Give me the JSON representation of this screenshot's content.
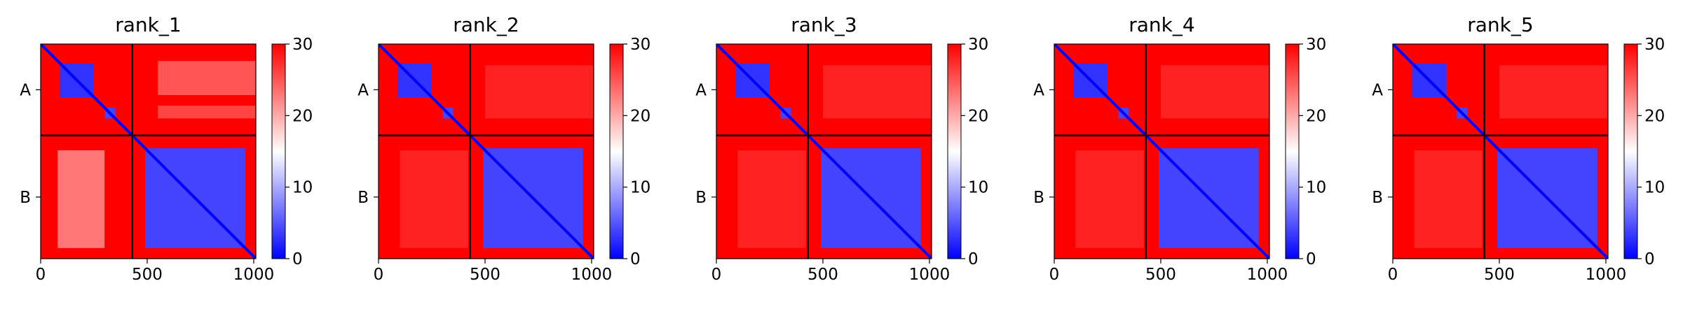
{
  "chart_data": [
    {
      "type": "heatmap",
      "title": "rank_1",
      "xlim": [
        0,
        1010
      ],
      "ylim": [
        0,
        1010
      ],
      "x_ticks": [
        "0",
        "500",
        "1000"
      ],
      "y_labels": [
        "A",
        "B"
      ],
      "chain_boundary": 430,
      "colorbar": {
        "colormap": "bwr",
        "min": 0,
        "max": 30,
        "ticks": [
          "0",
          "10",
          "20",
          "30"
        ],
        "low_color": "#0000ff",
        "mid_color": "#ffffff",
        "high_color": "#ff0000"
      },
      "blocks": [
        {
          "x": [
            0,
            1010
          ],
          "y": [
            0,
            1010
          ],
          "value": 30
        },
        {
          "x": [
            550,
            1010
          ],
          "y": [
            80,
            240
          ],
          "value": 25
        },
        {
          "x": [
            550,
            1010
          ],
          "y": [
            290,
            350
          ],
          "value": 26
        },
        {
          "x": [
            80,
            300
          ],
          "y": [
            500,
            960
          ],
          "value": 23
        },
        {
          "x": [
            90,
            250
          ],
          "y": [
            90,
            250
          ],
          "value": 3
        },
        {
          "x": [
            300,
            350
          ],
          "y": [
            300,
            350
          ],
          "value": 4
        },
        {
          "x": [
            490,
            960
          ],
          "y": [
            490,
            960
          ],
          "value": 4
        }
      ]
    },
    {
      "type": "heatmap",
      "title": "rank_2",
      "xlim": [
        0,
        1010
      ],
      "ylim": [
        0,
        1010
      ],
      "x_ticks": [
        "0",
        "500",
        "1000"
      ],
      "y_labels": [
        "A",
        "B"
      ],
      "chain_boundary": 430,
      "colorbar": {
        "colormap": "bwr",
        "min": 0,
        "max": 30,
        "ticks": [
          "0",
          "10",
          "20",
          "30"
        ],
        "low_color": "#0000ff",
        "mid_color": "#ffffff",
        "high_color": "#ff0000"
      },
      "blocks": [
        {
          "x": [
            0,
            1010
          ],
          "y": [
            0,
            1010
          ],
          "value": 30
        },
        {
          "x": [
            500,
            1010
          ],
          "y": [
            100,
            350
          ],
          "value": 28
        },
        {
          "x": [
            100,
            420
          ],
          "y": [
            500,
            960
          ],
          "value": 28
        },
        {
          "x": [
            90,
            250
          ],
          "y": [
            90,
            250
          ],
          "value": 3
        },
        {
          "x": [
            300,
            350
          ],
          "y": [
            300,
            350
          ],
          "value": 4
        },
        {
          "x": [
            490,
            960
          ],
          "y": [
            490,
            960
          ],
          "value": 4
        }
      ]
    },
    {
      "type": "heatmap",
      "title": "rank_3",
      "xlim": [
        0,
        1010
      ],
      "ylim": [
        0,
        1010
      ],
      "x_ticks": [
        "0",
        "500",
        "1000"
      ],
      "y_labels": [
        "A",
        "B"
      ],
      "chain_boundary": 430,
      "colorbar": {
        "colormap": "bwr",
        "min": 0,
        "max": 30,
        "ticks": [
          "0",
          "10",
          "20",
          "30"
        ],
        "low_color": "#0000ff",
        "mid_color": "#ffffff",
        "high_color": "#ff0000"
      },
      "blocks": [
        {
          "x": [
            0,
            1010
          ],
          "y": [
            0,
            1010
          ],
          "value": 30
        },
        {
          "x": [
            500,
            1010
          ],
          "y": [
            100,
            350
          ],
          "value": 28
        },
        {
          "x": [
            100,
            420
          ],
          "y": [
            500,
            960
          ],
          "value": 28
        },
        {
          "x": [
            90,
            250
          ],
          "y": [
            90,
            250
          ],
          "value": 3
        },
        {
          "x": [
            300,
            350
          ],
          "y": [
            300,
            350
          ],
          "value": 4
        },
        {
          "x": [
            490,
            960
          ],
          "y": [
            490,
            960
          ],
          "value": 4
        }
      ]
    },
    {
      "type": "heatmap",
      "title": "rank_4",
      "xlim": [
        0,
        1010
      ],
      "ylim": [
        0,
        1010
      ],
      "x_ticks": [
        "0",
        "500",
        "1000"
      ],
      "y_labels": [
        "A",
        "B"
      ],
      "chain_boundary": 430,
      "colorbar": {
        "colormap": "bwr",
        "min": 0,
        "max": 30,
        "ticks": [
          "0",
          "10",
          "20",
          "30"
        ],
        "low_color": "#0000ff",
        "mid_color": "#ffffff",
        "high_color": "#ff0000"
      },
      "blocks": [
        {
          "x": [
            0,
            1010
          ],
          "y": [
            0,
            1010
          ],
          "value": 30
        },
        {
          "x": [
            500,
            1010
          ],
          "y": [
            100,
            350
          ],
          "value": 28
        },
        {
          "x": [
            100,
            420
          ],
          "y": [
            500,
            960
          ],
          "value": 28
        },
        {
          "x": [
            90,
            250
          ],
          "y": [
            90,
            250
          ],
          "value": 3
        },
        {
          "x": [
            300,
            350
          ],
          "y": [
            300,
            350
          ],
          "value": 4
        },
        {
          "x": [
            490,
            960
          ],
          "y": [
            490,
            960
          ],
          "value": 4
        }
      ]
    },
    {
      "type": "heatmap",
      "title": "rank_5",
      "xlim": [
        0,
        1010
      ],
      "ylim": [
        0,
        1010
      ],
      "x_ticks": [
        "0",
        "500",
        "1000"
      ],
      "y_labels": [
        "A",
        "B"
      ],
      "chain_boundary": 430,
      "colorbar": {
        "colormap": "bwr",
        "min": 0,
        "max": 30,
        "ticks": [
          "0",
          "10",
          "20",
          "30"
        ],
        "low_color": "#0000ff",
        "mid_color": "#ffffff",
        "high_color": "#ff0000"
      },
      "blocks": [
        {
          "x": [
            0,
            1010
          ],
          "y": [
            0,
            1010
          ],
          "value": 30
        },
        {
          "x": [
            500,
            1010
          ],
          "y": [
            100,
            350
          ],
          "value": 28
        },
        {
          "x": [
            100,
            420
          ],
          "y": [
            500,
            960
          ],
          "value": 28
        },
        {
          "x": [
            90,
            250
          ],
          "y": [
            90,
            250
          ],
          "value": 3
        },
        {
          "x": [
            300,
            350
          ],
          "y": [
            300,
            350
          ],
          "value": 4
        },
        {
          "x": [
            490,
            960
          ],
          "y": [
            490,
            960
          ],
          "value": 4
        }
      ]
    }
  ]
}
